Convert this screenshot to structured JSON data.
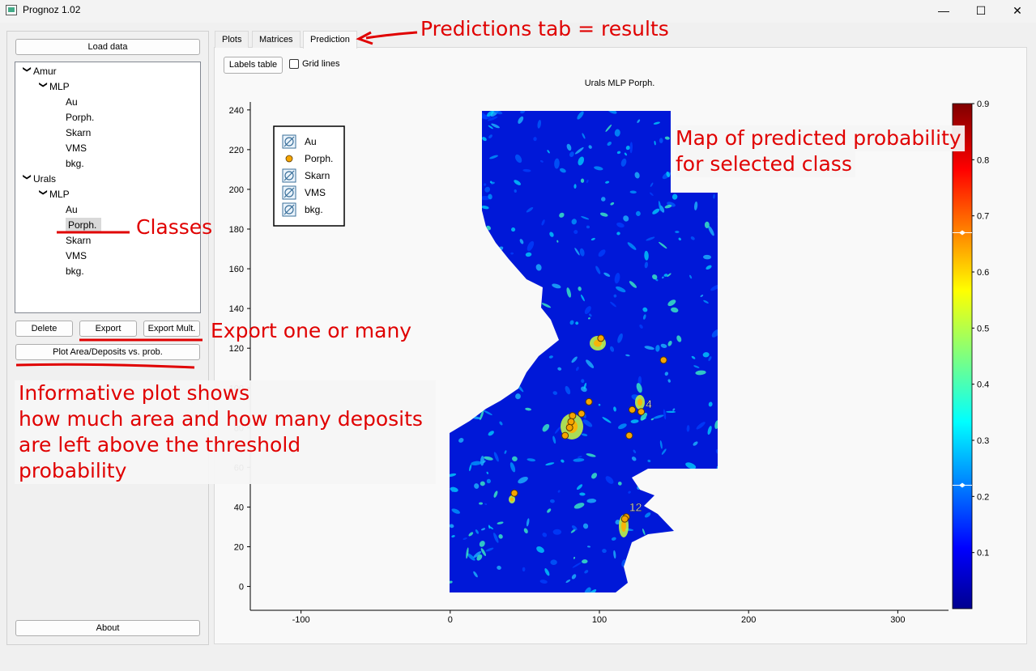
{
  "window": {
    "title": "Prognoz 1.02",
    "minimize": "—",
    "maximize": "☐",
    "close": "✕"
  },
  "left": {
    "load_data": "Load data",
    "tree": [
      {
        "label": "Amur",
        "level": 0,
        "arrow": "❯",
        "expanded": true
      },
      {
        "label": "MLP",
        "level": 1,
        "arrow": "❯",
        "expanded": true
      },
      {
        "label": "Au",
        "level": 2
      },
      {
        "label": "Porph.",
        "level": 2
      },
      {
        "label": "Skarn",
        "level": 2
      },
      {
        "label": "VMS",
        "level": 2
      },
      {
        "label": "bkg.",
        "level": 2
      },
      {
        "label": "Urals",
        "level": 0,
        "arrow": "❯",
        "expanded": true
      },
      {
        "label": "MLP",
        "level": 1,
        "arrow": "❯",
        "expanded": true
      },
      {
        "label": "Au",
        "level": 2
      },
      {
        "label": "Porph.",
        "level": 2,
        "selected": true
      },
      {
        "label": "Skarn",
        "level": 2
      },
      {
        "label": "VMS",
        "level": 2
      },
      {
        "label": "bkg.",
        "level": 2
      }
    ],
    "delete": "Delete",
    "export": "Export",
    "export_mult": "Export Mult.",
    "plot_area": "Plot Area/Deposits vs. prob.",
    "about": "About"
  },
  "tabs": [
    {
      "label": "Plots",
      "active": false
    },
    {
      "label": "Matrices",
      "active": false
    },
    {
      "label": "Prediction",
      "active": true
    }
  ],
  "toolbar": {
    "labels_table": "Labels table",
    "grid_lines": "Grid lines",
    "grid_checked": false
  },
  "annotations": {
    "predictions_tab": "Predictions tab = results",
    "map_line1": "Map of predicted probability",
    "map_line2": "for selected class",
    "classes": "Classes",
    "export": "Export one or many",
    "info_line1": "Informative plot shows",
    "info_line2": "how much area and how many deposits",
    "info_line3": "are left above the threshold",
    "info_line4": "probability",
    "color": "#e00000"
  },
  "chart_data": {
    "type": "heatmap",
    "title": "Urals MLP Porph.",
    "xlabel": "",
    "ylabel": "",
    "xlim": [
      -134,
      334
    ],
    "ylim": [
      -12,
      244
    ],
    "x_ticks": [
      -100,
      0,
      100,
      200,
      300
    ],
    "y_ticks": [
      0,
      20,
      40,
      60,
      80,
      100,
      120,
      140,
      160,
      180,
      200,
      220,
      240
    ],
    "colorbar": {
      "range": [
        0,
        0.9
      ],
      "ticks": [
        "0.1",
        "0.2",
        "0.3",
        "0.4",
        "0.5",
        "0.6",
        "0.7",
        "0.8",
        "0.9"
      ],
      "markers": [
        0.22,
        0.67
      ],
      "colormap": "jet"
    },
    "legend": {
      "position": "top-left",
      "entries": [
        {
          "label": "Au",
          "visible": false
        },
        {
          "label": "Porph.",
          "visible": true,
          "color": "#f5a500"
        },
        {
          "label": "Skarn",
          "visible": false
        },
        {
          "label": "VMS",
          "visible": false
        },
        {
          "label": "bkg.",
          "visible": false
        }
      ]
    },
    "series": [
      {
        "name": "Porph.",
        "points": [
          {
            "x": 101,
            "y": 125
          },
          {
            "x": 143,
            "y": 114
          },
          {
            "x": 93,
            "y": 93
          },
          {
            "x": 122,
            "y": 89
          },
          {
            "x": 128,
            "y": 88
          },
          {
            "x": 88,
            "y": 87
          },
          {
            "x": 82,
            "y": 86
          },
          {
            "x": 81,
            "y": 83
          },
          {
            "x": 80,
            "y": 80
          },
          {
            "x": 77,
            "y": 76
          },
          {
            "x": 120,
            "y": 76
          },
          {
            "x": 43,
            "y": 47
          },
          {
            "x": 118,
            "y": 35
          },
          {
            "x": 117,
            "y": 34
          }
        ]
      }
    ],
    "point_labels": [
      {
        "x": 131,
        "y": 90,
        "text": "4"
      },
      {
        "x": 120,
        "y": 38,
        "text": "12"
      }
    ]
  }
}
